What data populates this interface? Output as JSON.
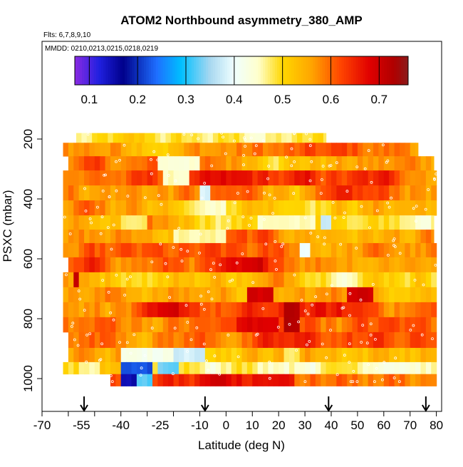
{
  "chart_data": {
    "type": "heatmap",
    "title": "ATOM2 Northbound asymmetry_380_AMP",
    "subtitle": "Flts: 6,7,8,9,10",
    "annotation": "MMDD: 0210,0213,0215,0218,0219",
    "xlabel": "Latitude (deg N)",
    "ylabel": "PSXC (mbar)",
    "xlim": [
      -70,
      82
    ],
    "ylim": [
      1000,
      100
    ],
    "x_ticks": [
      -70,
      -60,
      -50,
      -40,
      -30,
      -20,
      -10,
      0,
      10,
      20,
      30,
      40,
      50,
      60,
      70,
      80
    ],
    "x_tick_labels": [
      "-70",
      "-55",
      "-40",
      "-25",
      "-10",
      "0",
      "10",
      "20",
      "30",
      "40",
      "50",
      "60",
      "70",
      "80"
    ],
    "x_tick_label_values": [
      -70,
      -55,
      -40,
      -25,
      -10,
      0,
      10,
      20,
      30,
      40,
      50,
      60,
      70,
      80
    ],
    "y_ticks": [
      200,
      400,
      600,
      800,
      1000
    ],
    "y_tick_labels": [
      "200",
      "400",
      "600",
      "800",
      "1000"
    ],
    "colorbar": {
      "range": [
        0.07,
        0.76
      ],
      "ticks": [
        0.1,
        0.2,
        0.3,
        0.4,
        0.5,
        0.6,
        0.7
      ],
      "tick_labels": [
        "0.1",
        "0.2",
        "0.3",
        "0.4",
        "0.5",
        "0.6",
        "0.7"
      ],
      "stops": [
        {
          "v": 0.07,
          "c": "#8a2be2"
        },
        {
          "v": 0.12,
          "c": "#2020e0"
        },
        {
          "v": 0.17,
          "c": "#00008b"
        },
        {
          "v": 0.24,
          "c": "#1e6fff"
        },
        {
          "v": 0.29,
          "c": "#00bfff"
        },
        {
          "v": 0.35,
          "c": "#a8d8f0"
        },
        {
          "v": 0.4,
          "c": "#f0ffff"
        },
        {
          "v": 0.45,
          "c": "#ffffcc"
        },
        {
          "v": 0.5,
          "c": "#ffd700"
        },
        {
          "v": 0.56,
          "c": "#ffa500"
        },
        {
          "v": 0.62,
          "c": "#ff4500"
        },
        {
          "v": 0.68,
          "c": "#e00000"
        },
        {
          "v": 0.73,
          "c": "#b00000"
        },
        {
          "v": 0.76,
          "c": "#8b1a1a"
        }
      ]
    },
    "arrow_latitudes": [
      -54,
      -8,
      39,
      76
    ],
    "rows": [
      {
        "p": 190,
        "lat0": -57,
        "lat1": 38,
        "base": 0.46
      },
      {
        "p": 235,
        "lat0": -62,
        "lat1": 73,
        "base": 0.58
      },
      {
        "p": 280,
        "lat0": -60,
        "lat1": 79,
        "base": 0.56
      },
      {
        "p": 330,
        "lat0": -62,
        "lat1": 80,
        "base": 0.6
      },
      {
        "p": 380,
        "lat0": -62,
        "lat1": 80,
        "base": 0.57
      },
      {
        "p": 430,
        "lat0": -62,
        "lat1": 80,
        "base": 0.56
      },
      {
        "p": 480,
        "lat0": -62,
        "lat1": 79,
        "base": 0.52
      },
      {
        "p": 525,
        "lat0": -62,
        "lat1": 79,
        "base": 0.55
      },
      {
        "p": 570,
        "lat0": -62,
        "lat1": 80,
        "base": 0.56
      },
      {
        "p": 620,
        "lat0": -60,
        "lat1": 80,
        "base": 0.6
      },
      {
        "p": 670,
        "lat0": -62,
        "lat1": 80,
        "base": 0.55
      },
      {
        "p": 720,
        "lat0": -62,
        "lat1": 80,
        "base": 0.56
      },
      {
        "p": 770,
        "lat0": -62,
        "lat1": 80,
        "base": 0.6
      },
      {
        "p": 820,
        "lat0": -62,
        "lat1": 80,
        "base": 0.59
      },
      {
        "p": 870,
        "lat0": -60,
        "lat1": 80,
        "base": 0.61
      },
      {
        "p": 925,
        "lat0": -60,
        "lat1": 80,
        "base": 0.55
      },
      {
        "p": 965,
        "lat0": -62,
        "lat1": 80,
        "base": 0.5
      },
      {
        "p": 1005,
        "lat0": -44,
        "lat1": 80,
        "base": 0.6
      }
    ],
    "features": [
      {
        "pmin": 240,
        "pmax": 270,
        "lat0": -34,
        "lat1": -28,
        "v": 0.35
      },
      {
        "pmin": 240,
        "pmax": 270,
        "lat0": 14,
        "lat1": 18,
        "v": 0.3
      },
      {
        "pmin": 270,
        "pmax": 310,
        "lat0": -26,
        "lat1": -10,
        "v": 0.44
      },
      {
        "pmin": 330,
        "pmax": 360,
        "lat0": -24,
        "lat1": -14,
        "v": 0.45
      },
      {
        "pmin": 350,
        "pmax": 420,
        "lat0": -10,
        "lat1": -6,
        "v": 0.38
      },
      {
        "pmin": 420,
        "pmax": 470,
        "lat0": -10,
        "lat1": 0,
        "v": 0.45
      },
      {
        "pmin": 450,
        "pmax": 510,
        "lat0": 12,
        "lat1": 34,
        "v": 0.45
      },
      {
        "pmin": 460,
        "pmax": 510,
        "lat0": 36,
        "lat1": 40,
        "v": 0.38
      },
      {
        "pmin": 455,
        "pmax": 510,
        "lat0": -40,
        "lat1": -30,
        "v": 0.47
      },
      {
        "pmin": 510,
        "pmax": 560,
        "lat0": -20,
        "lat1": 0,
        "v": 0.46
      },
      {
        "pmin": 550,
        "pmax": 600,
        "lat0": 28,
        "lat1": 32,
        "v": 0.4
      },
      {
        "pmin": 640,
        "pmax": 700,
        "lat0": -58,
        "lat1": -56,
        "v": 0.7
      },
      {
        "pmin": 720,
        "pmax": 760,
        "lat0": 8,
        "lat1": 18,
        "v": 0.69
      },
      {
        "pmin": 720,
        "pmax": 760,
        "lat0": 47,
        "lat1": 55,
        "v": 0.7
      },
      {
        "pmin": 760,
        "pmax": 820,
        "lat0": 22,
        "lat1": 27,
        "v": 0.73
      },
      {
        "pmin": 800,
        "pmax": 860,
        "lat0": 4,
        "lat1": 20,
        "v": 0.68
      },
      {
        "pmin": 890,
        "pmax": 950,
        "lat0": -40,
        "lat1": -20,
        "v": 0.42
      },
      {
        "pmin": 890,
        "pmax": 950,
        "lat0": -20,
        "lat1": -8,
        "v": 0.38
      },
      {
        "pmin": 890,
        "pmax": 950,
        "lat0": 22,
        "lat1": 28,
        "v": 0.48
      },
      {
        "pmin": 940,
        "pmax": 985,
        "lat0": -40,
        "lat1": -28,
        "v": 0.22
      },
      {
        "pmin": 940,
        "pmax": 985,
        "lat0": -26,
        "lat1": -18,
        "v": 0.33
      },
      {
        "pmin": 940,
        "pmax": 985,
        "lat0": -55,
        "lat1": -48,
        "v": 0.46
      },
      {
        "pmin": 985,
        "pmax": 1030,
        "lat0": -40,
        "lat1": -34,
        "v": 0.15
      },
      {
        "pmin": 985,
        "pmax": 1030,
        "lat0": -34,
        "lat1": -28,
        "v": 0.32
      },
      {
        "pmin": 985,
        "pmax": 1030,
        "lat0": 10,
        "lat1": 25,
        "v": 0.67
      }
    ]
  }
}
